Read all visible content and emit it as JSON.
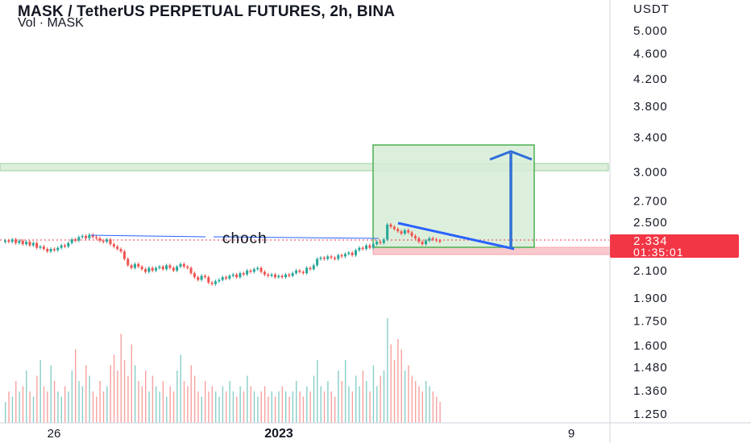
{
  "header": {
    "title": "MASK / TetherUS PERPETUAL FUTURES, 2h, BINA",
    "volume_label": "Vol · MASK"
  },
  "price_axis": {
    "currency": "USDT",
    "current_price": "2.334",
    "countdown": "01:35:01"
  },
  "annotations": {
    "choch_label": "choch"
  },
  "colors": {
    "up": "#26a69a",
    "down": "#ef5350",
    "price_tag": "#f23645",
    "zone_fill": "#d6ecd6",
    "zone_border": "#4caf50",
    "stop_zone": "#f8c9cd",
    "trend_line": "#2962ff",
    "projection_arrow": "#2f6fd6"
  },
  "chart_data": {
    "type": "candlestick",
    "title": "MASK / TetherUS PERPETUAL FUTURES, 2h, BINA",
    "y_scale": "log",
    "ylim": [
      1.2,
      5.5
    ],
    "y_ticks": [
      1.25,
      1.36,
      1.48,
      1.6,
      1.75,
      1.9,
      2.1,
      2.334,
      2.5,
      2.7,
      3.0,
      3.4,
      3.8,
      4.2,
      4.6,
      5.0
    ],
    "y_tick_labels": [
      "1.250",
      "1.360",
      "1.480",
      "1.600",
      "1.750",
      "1.900",
      "2.100",
      "2.334",
      "2.500",
      "2.700",
      "3.000",
      "3.400",
      "3.800",
      "4.200",
      "4.600",
      "5.000"
    ],
    "x_tick_labels": [
      "26",
      "2023",
      "9"
    ],
    "grid": false,
    "close_prices": [
      2.34,
      2.33,
      2.35,
      2.32,
      2.34,
      2.31,
      2.33,
      2.3,
      2.32,
      2.28,
      2.29,
      2.27,
      2.25,
      2.27,
      2.26,
      2.28,
      2.3,
      2.29,
      2.32,
      2.35,
      2.34,
      2.37,
      2.38,
      2.36,
      2.39,
      2.37,
      2.36,
      2.34,
      2.33,
      2.35,
      2.31,
      2.29,
      2.27,
      2.25,
      2.19,
      2.14,
      2.12,
      2.15,
      2.13,
      2.11,
      2.09,
      2.12,
      2.1,
      2.12,
      2.13,
      2.11,
      2.14,
      2.12,
      2.1,
      2.13,
      2.15,
      2.13,
      2.12,
      2.08,
      2.05,
      2.03,
      2.06,
      2.05,
      2.01,
      2.0,
      2.02,
      2.03,
      2.05,
      2.04,
      2.06,
      2.07,
      2.05,
      2.08,
      2.07,
      2.1,
      2.09,
      2.11,
      2.12,
      2.09,
      2.07,
      2.06,
      2.07,
      2.05,
      2.06,
      2.05,
      2.07,
      2.06,
      2.08,
      2.1,
      2.09,
      2.08,
      2.12,
      2.11,
      2.14,
      2.19,
      2.2,
      2.19,
      2.21,
      2.2,
      2.19,
      2.22,
      2.21,
      2.23,
      2.24,
      2.22,
      2.26,
      2.28,
      2.27,
      2.3,
      2.28,
      2.31,
      2.33,
      2.32,
      2.35,
      2.48,
      2.46,
      2.44,
      2.42,
      2.4,
      2.43,
      2.41,
      2.38,
      2.36,
      2.33,
      2.31,
      2.34,
      2.36,
      2.35,
      2.34,
      2.33
    ],
    "volume_relative": [
      0.2,
      0.3,
      0.25,
      0.4,
      0.3,
      0.35,
      0.5,
      0.3,
      0.25,
      0.45,
      0.6,
      0.35,
      0.3,
      0.55,
      0.4,
      0.3,
      0.25,
      0.35,
      0.3,
      0.5,
      0.7,
      0.4,
      0.35,
      0.55,
      0.45,
      0.3,
      0.25,
      0.4,
      0.3,
      0.35,
      0.55,
      0.65,
      0.5,
      0.85,
      0.6,
      0.45,
      0.75,
      0.55,
      0.4,
      0.35,
      0.5,
      0.3,
      0.45,
      0.35,
      0.3,
      0.4,
      0.25,
      0.35,
      0.3,
      0.5,
      0.65,
      0.4,
      0.35,
      0.55,
      0.45,
      0.3,
      0.25,
      0.4,
      0.3,
      0.35,
      0.3,
      0.25,
      0.35,
      0.3,
      0.4,
      0.3,
      0.25,
      0.35,
      0.3,
      0.45,
      0.35,
      0.3,
      0.25,
      0.3,
      0.35,
      0.25,
      0.3,
      0.25,
      0.3,
      0.35,
      0.3,
      0.25,
      0.3,
      0.4,
      0.3,
      0.25,
      0.35,
      0.3,
      0.45,
      0.6,
      0.35,
      0.3,
      0.4,
      0.3,
      0.25,
      0.5,
      0.4,
      0.6,
      0.35,
      0.3,
      0.45,
      0.35,
      0.5,
      0.4,
      0.3,
      0.55,
      0.35,
      0.45,
      0.5,
      1.0,
      0.75,
      0.6,
      0.8,
      0.7,
      0.5,
      0.55,
      0.45,
      0.4,
      0.35,
      0.3,
      0.4,
      0.35,
      0.3,
      0.25,
      0.2
    ]
  }
}
